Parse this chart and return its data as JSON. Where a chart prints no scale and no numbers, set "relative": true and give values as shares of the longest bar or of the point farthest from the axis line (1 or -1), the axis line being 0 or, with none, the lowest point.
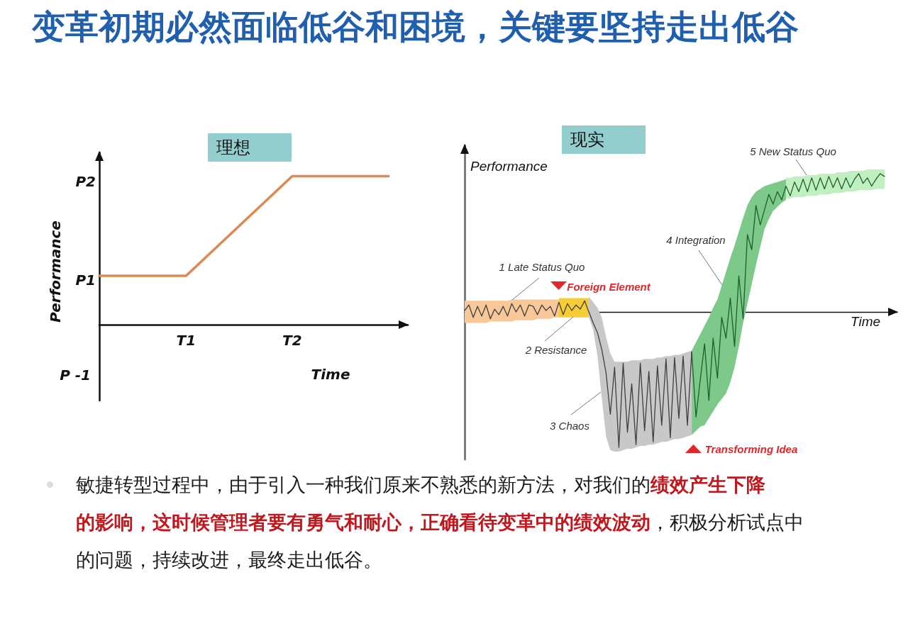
{
  "chart_data": [
    {
      "type": "line",
      "title": "变革初期必然面临低谷和困境，关键要坚持走出低谷",
      "subtitle": "理想",
      "xlabel": "Time",
      "ylabel": "Performance",
      "relative": true,
      "categories": [
        null,
        null,
        null,
        null,
        null,
        null,
        null,
        null,
        null,
        "T1",
        null,
        null,
        null,
        null,
        null,
        null,
        null,
        null,
        null,
        null,
        "T2",
        null,
        null,
        null,
        null,
        null,
        null,
        null,
        null,
        null,
        null,
        null,
        null
      ],
      "values": [
        0.33,
        null,
        null,
        null,
        null,
        null,
        null,
        null,
        null,
        0.33,
        null,
        null,
        null,
        null,
        null,
        null,
        null,
        null,
        null,
        null,
        1,
        null,
        null,
        null,
        null,
        null,
        null,
        null,
        null,
        null,
        1,
        null,
        null
      ],
      "color": "#dd8a52",
      "annotations": [
        "P2",
        "P1",
        "P -1",
        "敏捷转型过程中，由于引入一种我们原来不熟悉的新方法，对我们的",
        "绩效产生下降",
        "的影响，这时候管理者要有勇气和耐心，正确看待变革中的绩效波动",
        "，积极分析试点中",
        "的问题，持续改进，最终走出低谷。"
      ]
    },
    {
      "type": "line",
      "title": "现实",
      "xlabel": "Time",
      "ylabel": "Performance",
      "relative": true,
      "categories": [
        null,
        null,
        null,
        null,
        null,
        null,
        null,
        null,
        null,
        null,
        null,
        null,
        null,
        null,
        null,
        null,
        null,
        null,
        null,
        null,
        null,
        null,
        null,
        null,
        null,
        null,
        null,
        null,
        null,
        null,
        null,
        null,
        null,
        null,
        null,
        null,
        null,
        null,
        null,
        null,
        null,
        null,
        null,
        null,
        null,
        null,
        null,
        null,
        null,
        null,
        null,
        null,
        null,
        null,
        null,
        null,
        null,
        null,
        null,
        null,
        null,
        null,
        null,
        null,
        null,
        null,
        null,
        null,
        null,
        null,
        null,
        null,
        null,
        null,
        null,
        null,
        null,
        null,
        null,
        null,
        null,
        null,
        null,
        null,
        null,
        null,
        null,
        null,
        null,
        null,
        null,
        null,
        null,
        null,
        null,
        null,
        null,
        null,
        null,
        null,
        null,
        null
      ],
      "series": [
        {
          "color": "#3f3f3f",
          "values": [
            0.01,
            0.05,
            -0.04,
            0.04,
            -0.03,
            0.05,
            -0.05,
            0.02,
            -0.02,
            0.04,
            -0.03,
            0.06,
            0,
            0.05,
            -0.03,
            0.05,
            0.04,
            -0.02,
            0.05,
            0.01,
            0.04,
            -0.03,
            0.07,
            -0.02,
            0.06,
            0.01,
            0.05,
            0.02,
            0.08,
            0,
            -0.08,
            -0.15,
            -0.27,
            -0.44,
            -0.74,
            -0.4,
            -0.98,
            -0.37,
            -0.87,
            -0.52,
            -0.96,
            -0.37,
            -0.86,
            -0.43,
            -0.94,
            -0.39,
            -0.82,
            -0.34,
            -0.91,
            -0.33,
            -0.77,
            -0.32,
            -0.82,
            -0.29,
            null,
            null,
            null,
            null,
            null,
            null,
            null,
            null,
            null,
            null,
            null,
            null,
            null,
            null,
            null,
            null,
            null,
            null,
            null,
            null,
            null,
            null,
            null,
            null,
            null,
            null,
            null,
            null,
            null,
            null,
            null,
            null,
            null,
            null,
            null,
            null,
            null,
            null,
            null,
            null,
            null,
            null,
            null,
            null,
            null,
            null,
            null,
            null
          ]
        },
        {
          "color": "#1f5f2d",
          "values": [
            null,
            null,
            null,
            null,
            null,
            null,
            null,
            null,
            null,
            null,
            null,
            null,
            null,
            null,
            null,
            null,
            null,
            null,
            null,
            null,
            null,
            null,
            null,
            null,
            null,
            null,
            null,
            null,
            null,
            null,
            null,
            null,
            null,
            null,
            null,
            null,
            null,
            null,
            null,
            null,
            null,
            null,
            null,
            null,
            null,
            null,
            null,
            null,
            null,
            null,
            null,
            null,
            null,
            -0.29,
            -0.76,
            -0.49,
            -0.23,
            -0.64,
            -0.19,
            -0.48,
            -0.04,
            -0.19,
            0.1,
            -0.25,
            0.26,
            -0.05,
            0.56,
            0.45,
            0.77,
            0.63,
            0.74,
            0.85,
            0.78,
            0.87,
            0.81,
            0.91,
            0.84,
            0.94,
            0.87,
            0.96,
            0.87,
            0.97,
            0.88,
            0.97,
            0.89,
            0.98,
            0.9,
            0.97,
            0.89,
            0.97,
            0.9,
            0.96,
            1,
            0.93,
            0.97,
            0.91,
            0.96,
            1,
            0.98,
            null,
            null,
            null
          ]
        },
        {
          "color": "#f8c898",
          "values": [
            null,
            null,
            null,
            null,
            null,
            null,
            null,
            null,
            null,
            null,
            null,
            null,
            null,
            null,
            null,
            null,
            null,
            null,
            null,
            null,
            null,
            null,
            null,
            null,
            null,
            null,
            null,
            null,
            null,
            null,
            null,
            null,
            null,
            null,
            null,
            null,
            null,
            null,
            null,
            null,
            null,
            null,
            null,
            null,
            null,
            null,
            null,
            null,
            null,
            null,
            null,
            null,
            null,
            null,
            null,
            null,
            null,
            null,
            null,
            null,
            null,
            null,
            null,
            null,
            null,
            null,
            null,
            null,
            null,
            null,
            null,
            null,
            null,
            null,
            null,
            null,
            null,
            null,
            null,
            null,
            null,
            null,
            null,
            null,
            null,
            null,
            null,
            null,
            null,
            null,
            null,
            null,
            null,
            null,
            null,
            null,
            null,
            null,
            null,
            null,
            null,
            null
          ],
          "upper": [
            0.08,
            0.08,
            0.08,
            0.08,
            0.08,
            0.08,
            0.08,
            0.08,
            0.08,
            0.08,
            0.08,
            0.09,
            0.09,
            0.09,
            0.09,
            0.09,
            0.09,
            0.09,
            0.09,
            0.09,
            0.09,
            0.09,
            0.09,
            null,
            null,
            null,
            null,
            null,
            null,
            null,
            null,
            null,
            null,
            null,
            null,
            null,
            null,
            null,
            null,
            null,
            null,
            null,
            null,
            null,
            null,
            null,
            null,
            null,
            null,
            null,
            null,
            null,
            null,
            null,
            null,
            null,
            null,
            null,
            null,
            null,
            null,
            null,
            null,
            null,
            null,
            null,
            null,
            null,
            null,
            null,
            null,
            null,
            null,
            null,
            null,
            null,
            null,
            null,
            null,
            null,
            null,
            null,
            null,
            null,
            null,
            null,
            null,
            null,
            null,
            null,
            null,
            null,
            null,
            null,
            null,
            null,
            null,
            null,
            null,
            null,
            null,
            null
          ],
          "lower": [
            -0.08,
            -0.08,
            -0.08,
            -0.08,
            -0.08,
            -0.08,
            -0.07,
            -0.07,
            -0.07,
            -0.07,
            -0.07,
            -0.07,
            -0.06,
            -0.06,
            -0.06,
            -0.06,
            -0.06,
            -0.05,
            -0.05,
            -0.05,
            -0.05,
            -0.04,
            -0.04,
            null,
            null,
            null,
            null,
            null,
            null,
            null,
            null,
            null,
            null,
            null,
            null,
            null,
            null,
            null,
            null,
            null,
            null,
            null,
            null,
            null,
            null,
            null,
            null,
            null,
            null,
            null,
            null,
            null,
            null,
            null,
            null,
            null,
            null,
            null,
            null,
            null,
            null,
            null,
            null,
            null,
            null,
            null,
            null,
            null,
            null,
            null,
            null,
            null,
            null,
            null,
            null,
            null,
            null,
            null,
            null,
            null,
            null,
            null,
            null,
            null,
            null,
            null,
            null,
            null,
            null,
            null,
            null,
            null,
            null,
            null,
            null,
            null,
            null,
            null,
            null,
            null,
            null,
            null
          ]
        },
        {
          "color": "#f6cd35",
          "values": [
            null,
            null,
            null,
            null,
            null,
            null,
            null,
            null,
            null,
            null,
            null,
            null,
            null,
            null,
            null,
            null,
            null,
            null,
            null,
            null,
            null,
            null,
            null,
            null,
            null,
            null,
            null,
            null,
            null,
            null,
            null,
            null,
            null,
            null,
            null,
            null,
            null,
            null,
            null,
            null,
            null,
            null,
            null,
            null,
            null,
            null,
            null,
            null,
            null,
            null,
            null,
            null,
            null,
            null,
            null,
            null,
            null,
            null,
            null,
            null,
            null,
            null,
            null,
            null,
            null,
            null,
            null,
            null,
            null,
            null,
            null,
            null,
            null,
            null,
            null,
            null,
            null,
            null,
            null,
            null,
            null,
            null,
            null,
            null,
            null,
            null,
            null,
            null,
            null,
            null,
            null,
            null,
            null,
            null,
            null,
            null,
            null,
            null,
            null,
            null,
            null,
            null
          ],
          "upper": [
            null,
            null,
            null,
            null,
            null,
            null,
            null,
            null,
            null,
            null,
            null,
            null,
            null,
            null,
            null,
            null,
            null,
            null,
            null,
            null,
            null,
            null,
            0.1,
            0.1,
            0.1,
            0.1,
            0.1,
            0.1,
            0.1,
            0.1,
            null,
            null,
            null,
            null,
            null,
            null,
            null,
            null,
            null,
            null,
            null,
            null,
            null,
            null,
            null,
            null,
            null,
            null,
            null,
            null,
            null,
            null,
            null,
            null,
            null,
            null,
            null,
            null,
            null,
            null,
            null,
            null,
            null,
            null,
            null,
            null,
            null,
            null,
            null,
            null,
            null,
            null,
            null,
            null,
            null,
            null,
            null,
            null,
            null,
            null,
            null,
            null,
            null,
            null,
            null,
            null,
            null,
            null,
            null,
            null,
            null,
            null,
            null,
            null,
            null,
            null,
            null,
            null,
            null,
            null,
            null,
            null
          ],
          "lower": [
            null,
            null,
            null,
            null,
            null,
            null,
            null,
            null,
            null,
            null,
            null,
            null,
            null,
            null,
            null,
            null,
            null,
            null,
            null,
            null,
            null,
            null,
            -0.04,
            -0.04,
            -0.04,
            -0.04,
            -0.04,
            -0.04,
            -0.04,
            -0.04,
            null,
            null,
            null,
            null,
            null,
            null,
            null,
            null,
            null,
            null,
            null,
            null,
            null,
            null,
            null,
            null,
            null,
            null,
            null,
            null,
            null,
            null,
            null,
            null,
            null,
            null,
            null,
            null,
            null,
            null,
            null,
            null,
            null,
            null,
            null,
            null,
            null,
            null,
            null,
            null,
            null,
            null,
            null,
            null,
            null,
            null,
            null,
            null,
            null,
            null,
            null,
            null,
            null,
            null,
            null,
            null,
            null,
            null,
            null,
            null,
            null,
            null,
            null,
            null,
            null,
            null,
            null,
            null,
            null,
            null,
            null,
            null
          ]
        },
        {
          "color": "#c8c8c8",
          "values": [
            null,
            null,
            null,
            null,
            null,
            null,
            null,
            null,
            null,
            null,
            null,
            null,
            null,
            null,
            null,
            null,
            null,
            null,
            null,
            null,
            null,
            null,
            null,
            null,
            null,
            null,
            null,
            null,
            null,
            null,
            null,
            null,
            null,
            null,
            null,
            null,
            null,
            null,
            null,
            null,
            null,
            null,
            null,
            null,
            null,
            null,
            null,
            null,
            null,
            null,
            null,
            null,
            null,
            null,
            null,
            null,
            null,
            null,
            null,
            null,
            null,
            null,
            null,
            null,
            null,
            null,
            null,
            null,
            null,
            null,
            null,
            null,
            null,
            null,
            null,
            null,
            null,
            null,
            null,
            null,
            null,
            null,
            null,
            null,
            null,
            null,
            null,
            null,
            null,
            null,
            null,
            null,
            null,
            null,
            null,
            null,
            null,
            null,
            null,
            null,
            null,
            null
          ],
          "upper": [
            null,
            null,
            null,
            null,
            null,
            null,
            null,
            null,
            null,
            null,
            null,
            null,
            null,
            null,
            null,
            null,
            null,
            null,
            null,
            null,
            null,
            null,
            null,
            null,
            null,
            null,
            null,
            null,
            null,
            0.11,
            0.07,
            0.03,
            -0.04,
            -0.18,
            -0.3,
            -0.36,
            -0.36,
            -0.36,
            -0.36,
            -0.35,
            -0.35,
            -0.35,
            -0.34,
            -0.34,
            -0.34,
            -0.33,
            -0.33,
            -0.32,
            -0.32,
            -0.31,
            -0.31,
            -0.3,
            -0.29,
            -0.28,
            null,
            null,
            null,
            null,
            null,
            null,
            null,
            null,
            null,
            null,
            null,
            null,
            null,
            null,
            null,
            null,
            null,
            null,
            null,
            null,
            null,
            null,
            null,
            null,
            null,
            null,
            null,
            null,
            null,
            null,
            null,
            null,
            null,
            null,
            null,
            null,
            null,
            null,
            null,
            null,
            null,
            null,
            null,
            null,
            null,
            null,
            null,
            null
          ],
          "lower": [
            null,
            null,
            null,
            null,
            null,
            null,
            null,
            null,
            null,
            null,
            null,
            null,
            null,
            null,
            null,
            null,
            null,
            null,
            null,
            null,
            null,
            null,
            null,
            null,
            null,
            null,
            null,
            null,
            null,
            -0.04,
            -0.13,
            -0.32,
            -0.62,
            -0.9,
            -1,
            -1.01,
            -1.01,
            -1,
            -0.99,
            -0.99,
            -0.98,
            -0.97,
            -0.97,
            -0.96,
            -0.96,
            -0.95,
            -0.94,
            -0.94,
            -0.93,
            -0.92,
            -0.92,
            -0.91,
            -0.9,
            -0.89,
            null,
            null,
            null,
            null,
            null,
            null,
            null,
            null,
            null,
            null,
            null,
            null,
            null,
            null,
            null,
            null,
            null,
            null,
            null,
            null,
            null,
            null,
            null,
            null,
            null,
            null,
            null,
            null,
            null,
            null,
            null,
            null,
            null,
            null,
            null,
            null,
            null,
            null,
            null,
            null,
            null,
            null,
            null,
            null,
            null,
            null,
            null,
            null
          ]
        },
        {
          "color": "#7cc98a",
          "values": [
            null,
            null,
            null,
            null,
            null,
            null,
            null,
            null,
            null,
            null,
            null,
            null,
            null,
            null,
            null,
            null,
            null,
            null,
            null,
            null,
            null,
            null,
            null,
            null,
            null,
            null,
            null,
            null,
            null,
            null,
            null,
            null,
            null,
            null,
            null,
            null,
            null,
            null,
            null,
            null,
            null,
            null,
            null,
            null,
            null,
            null,
            null,
            null,
            null,
            null,
            null,
            null,
            null,
            null,
            null,
            null,
            null,
            null,
            null,
            null,
            null,
            null,
            null,
            null,
            null,
            null,
            null,
            null,
            null,
            null,
            null,
            null,
            null,
            null,
            null,
            null,
            null,
            null,
            null,
            null,
            null,
            null,
            null,
            null,
            null,
            null,
            null,
            null,
            null,
            null,
            null,
            null,
            null,
            null,
            null,
            null,
            null,
            null,
            null,
            null,
            null,
            null
          ],
          "upper": [
            null,
            null,
            null,
            null,
            null,
            null,
            null,
            null,
            null,
            null,
            null,
            null,
            null,
            null,
            null,
            null,
            null,
            null,
            null,
            null,
            null,
            null,
            null,
            null,
            null,
            null,
            null,
            null,
            null,
            null,
            null,
            null,
            null,
            null,
            null,
            null,
            null,
            null,
            null,
            null,
            null,
            null,
            null,
            null,
            null,
            null,
            null,
            null,
            null,
            null,
            null,
            null,
            null,
            -0.28,
            -0.22,
            -0.16,
            -0.1,
            -0.04,
            0.03,
            0.09,
            0.19,
            0.29,
            0.39,
            0.48,
            0.58,
            0.68,
            0.77,
            0.83,
            0.87,
            0.89,
            0.91,
            0.92,
            0.93,
            0.94,
            0.95,
            0.96,
            null,
            null,
            null,
            null,
            null,
            null,
            null,
            null,
            null,
            null,
            null,
            null,
            null,
            null,
            null,
            null,
            null,
            null,
            null,
            null,
            null,
            null,
            null,
            null,
            null,
            null
          ],
          "lower": [
            null,
            null,
            null,
            null,
            null,
            null,
            null,
            null,
            null,
            null,
            null,
            null,
            null,
            null,
            null,
            null,
            null,
            null,
            null,
            null,
            null,
            null,
            null,
            null,
            null,
            null,
            null,
            null,
            null,
            null,
            null,
            null,
            null,
            null,
            null,
            null,
            null,
            null,
            null,
            null,
            null,
            null,
            null,
            null,
            null,
            null,
            null,
            null,
            null,
            null,
            null,
            null,
            null,
            -0.89,
            -0.86,
            -0.83,
            -0.82,
            -0.77,
            -0.72,
            -0.67,
            -0.63,
            -0.59,
            -0.51,
            -0.4,
            -0.25,
            -0.08,
            0.06,
            0.2,
            0.34,
            0.47,
            0.6,
            0.67,
            0.73,
            0.76,
            0.79,
            0.81,
            null,
            null,
            null,
            null,
            null,
            null,
            null,
            null,
            null,
            null,
            null,
            null,
            null,
            null,
            null,
            null,
            null,
            null,
            null,
            null,
            null,
            null,
            null,
            null,
            null,
            null
          ]
        },
        {
          "color": "#c0efc0",
          "values": [
            null,
            null,
            null,
            null,
            null,
            null,
            null,
            null,
            null,
            null,
            null,
            null,
            null,
            null,
            null,
            null,
            null,
            null,
            null,
            null,
            null,
            null,
            null,
            null,
            null,
            null,
            null,
            null,
            null,
            null,
            null,
            null,
            null,
            null,
            null,
            null,
            null,
            null,
            null,
            null,
            null,
            null,
            null,
            null,
            null,
            null,
            null,
            null,
            null,
            null,
            null,
            null,
            null,
            null,
            null,
            null,
            null,
            null,
            null,
            null,
            null,
            null,
            null,
            null,
            null,
            null,
            null,
            null,
            null,
            null,
            null,
            null,
            null,
            null,
            null,
            null,
            null,
            null,
            null,
            null,
            null,
            null,
            null,
            null,
            null,
            null,
            null,
            null,
            null,
            null,
            null,
            null,
            null,
            null,
            null,
            null,
            null,
            null,
            null,
            null,
            null,
            null
          ],
          "upper": [
            null,
            null,
            null,
            null,
            null,
            null,
            null,
            null,
            null,
            null,
            null,
            null,
            null,
            null,
            null,
            null,
            null,
            null,
            null,
            null,
            null,
            null,
            null,
            null,
            null,
            null,
            null,
            null,
            null,
            null,
            null,
            null,
            null,
            null,
            null,
            null,
            null,
            null,
            null,
            null,
            null,
            null,
            null,
            null,
            null,
            null,
            null,
            null,
            null,
            null,
            null,
            null,
            null,
            null,
            null,
            null,
            null,
            null,
            null,
            null,
            null,
            null,
            null,
            null,
            null,
            null,
            null,
            null,
            null,
            null,
            null,
            null,
            null,
            null,
            null,
            0.97,
            0.97,
            0.98,
            0.98,
            0.98,
            0.99,
            0.99,
            0.99,
            1,
            1,
            1,
            1,
            1.01,
            1.01,
            1.01,
            1.02,
            1.02,
            1.02,
            1.02,
            1.03,
            1.03,
            1.03,
            1.03,
            1.03,
            null,
            null,
            null
          ],
          "lower": [
            null,
            null,
            null,
            null,
            null,
            null,
            null,
            null,
            null,
            null,
            null,
            null,
            null,
            null,
            null,
            null,
            null,
            null,
            null,
            null,
            null,
            null,
            null,
            null,
            null,
            null,
            null,
            null,
            null,
            null,
            null,
            null,
            null,
            null,
            null,
            null,
            null,
            null,
            null,
            null,
            null,
            null,
            null,
            null,
            null,
            null,
            null,
            null,
            null,
            null,
            null,
            null,
            null,
            null,
            null,
            null,
            null,
            null,
            null,
            null,
            null,
            null,
            null,
            null,
            null,
            null,
            null,
            null,
            null,
            null,
            null,
            null,
            null,
            null,
            null,
            0.82,
            0.82,
            0.83,
            0.83,
            0.83,
            0.84,
            0.84,
            0.84,
            0.85,
            0.85,
            0.85,
            0.86,
            0.86,
            0.86,
            0.87,
            0.87,
            0.87,
            0.88,
            0.88,
            0.88,
            0.88,
            0.89,
            0.89,
            0.89,
            null,
            null,
            null
          ]
        }
      ],
      "annotations": [
        "1 Late Status Quo",
        "Foreign Element",
        "2 Resistance",
        "3 Chaos",
        "Transforming Idea",
        "4 Integration",
        "5 New Status Quo"
      ]
    }
  ]
}
